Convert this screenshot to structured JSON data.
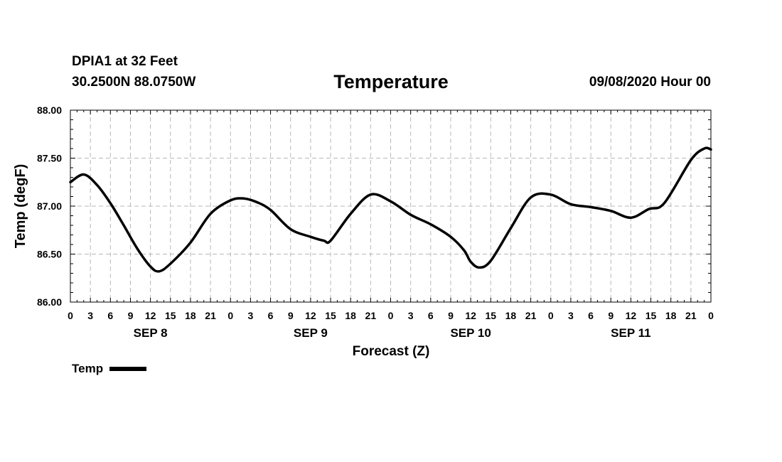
{
  "header": {
    "station": "DPIA1 at 32 Feet",
    "coords": "30.2500N 88.0750W",
    "title": "Temperature",
    "timestamp": "09/08/2020 Hour 00"
  },
  "legend": {
    "label": "Temp",
    "color": "#000000"
  },
  "chart_data": {
    "type": "line",
    "title": "Temperature",
    "xlabel": "Forecast (Z)",
    "ylabel": "Temp (degF)",
    "xlim": [
      0,
      96
    ],
    "ylim": [
      86.0,
      88.0
    ],
    "y_ticks": [
      "86.00",
      "86.50",
      "87.00",
      "87.50",
      "88.00"
    ],
    "x_tick_labels": [
      "0",
      "3",
      "6",
      "9",
      "12",
      "15",
      "18",
      "21",
      "0",
      "3",
      "6",
      "9",
      "12",
      "15",
      "18",
      "21",
      "0",
      "3",
      "6",
      "9",
      "12",
      "15",
      "18",
      "21",
      "0",
      "3",
      "6",
      "9",
      "12",
      "15",
      "18",
      "21",
      "0"
    ],
    "day_labels": [
      {
        "hour": 12,
        "label": "SEP 8"
      },
      {
        "hour": 36,
        "label": "SEP 9"
      },
      {
        "hour": 60,
        "label": "SEP 10"
      },
      {
        "hour": 84,
        "label": "SEP 11"
      }
    ],
    "grid": true,
    "series": [
      {
        "name": "Temp",
        "color": "#000000",
        "x": [
          0,
          2,
          4,
          6,
          8,
          10,
          12,
          13.3,
          15,
          18,
          21,
          24,
          26,
          28,
          30,
          33,
          36,
          38,
          39,
          42,
          45,
          48,
          51,
          54,
          57,
          59,
          60,
          61.3,
          63,
          66,
          69,
          72,
          75,
          78,
          81,
          84,
          86.7,
          89,
          93,
          95,
          96
        ],
        "values": [
          87.25,
          87.33,
          87.22,
          87.03,
          86.8,
          86.56,
          86.37,
          86.32,
          86.4,
          86.62,
          86.92,
          87.06,
          87.08,
          87.04,
          86.96,
          86.76,
          86.68,
          86.64,
          86.64,
          86.92,
          87.12,
          87.05,
          86.91,
          86.81,
          86.68,
          86.54,
          86.42,
          86.36,
          86.43,
          86.77,
          87.09,
          87.12,
          87.02,
          86.99,
          86.95,
          86.88,
          86.97,
          87.03,
          87.48,
          87.6,
          87.59
        ]
      }
    ]
  }
}
